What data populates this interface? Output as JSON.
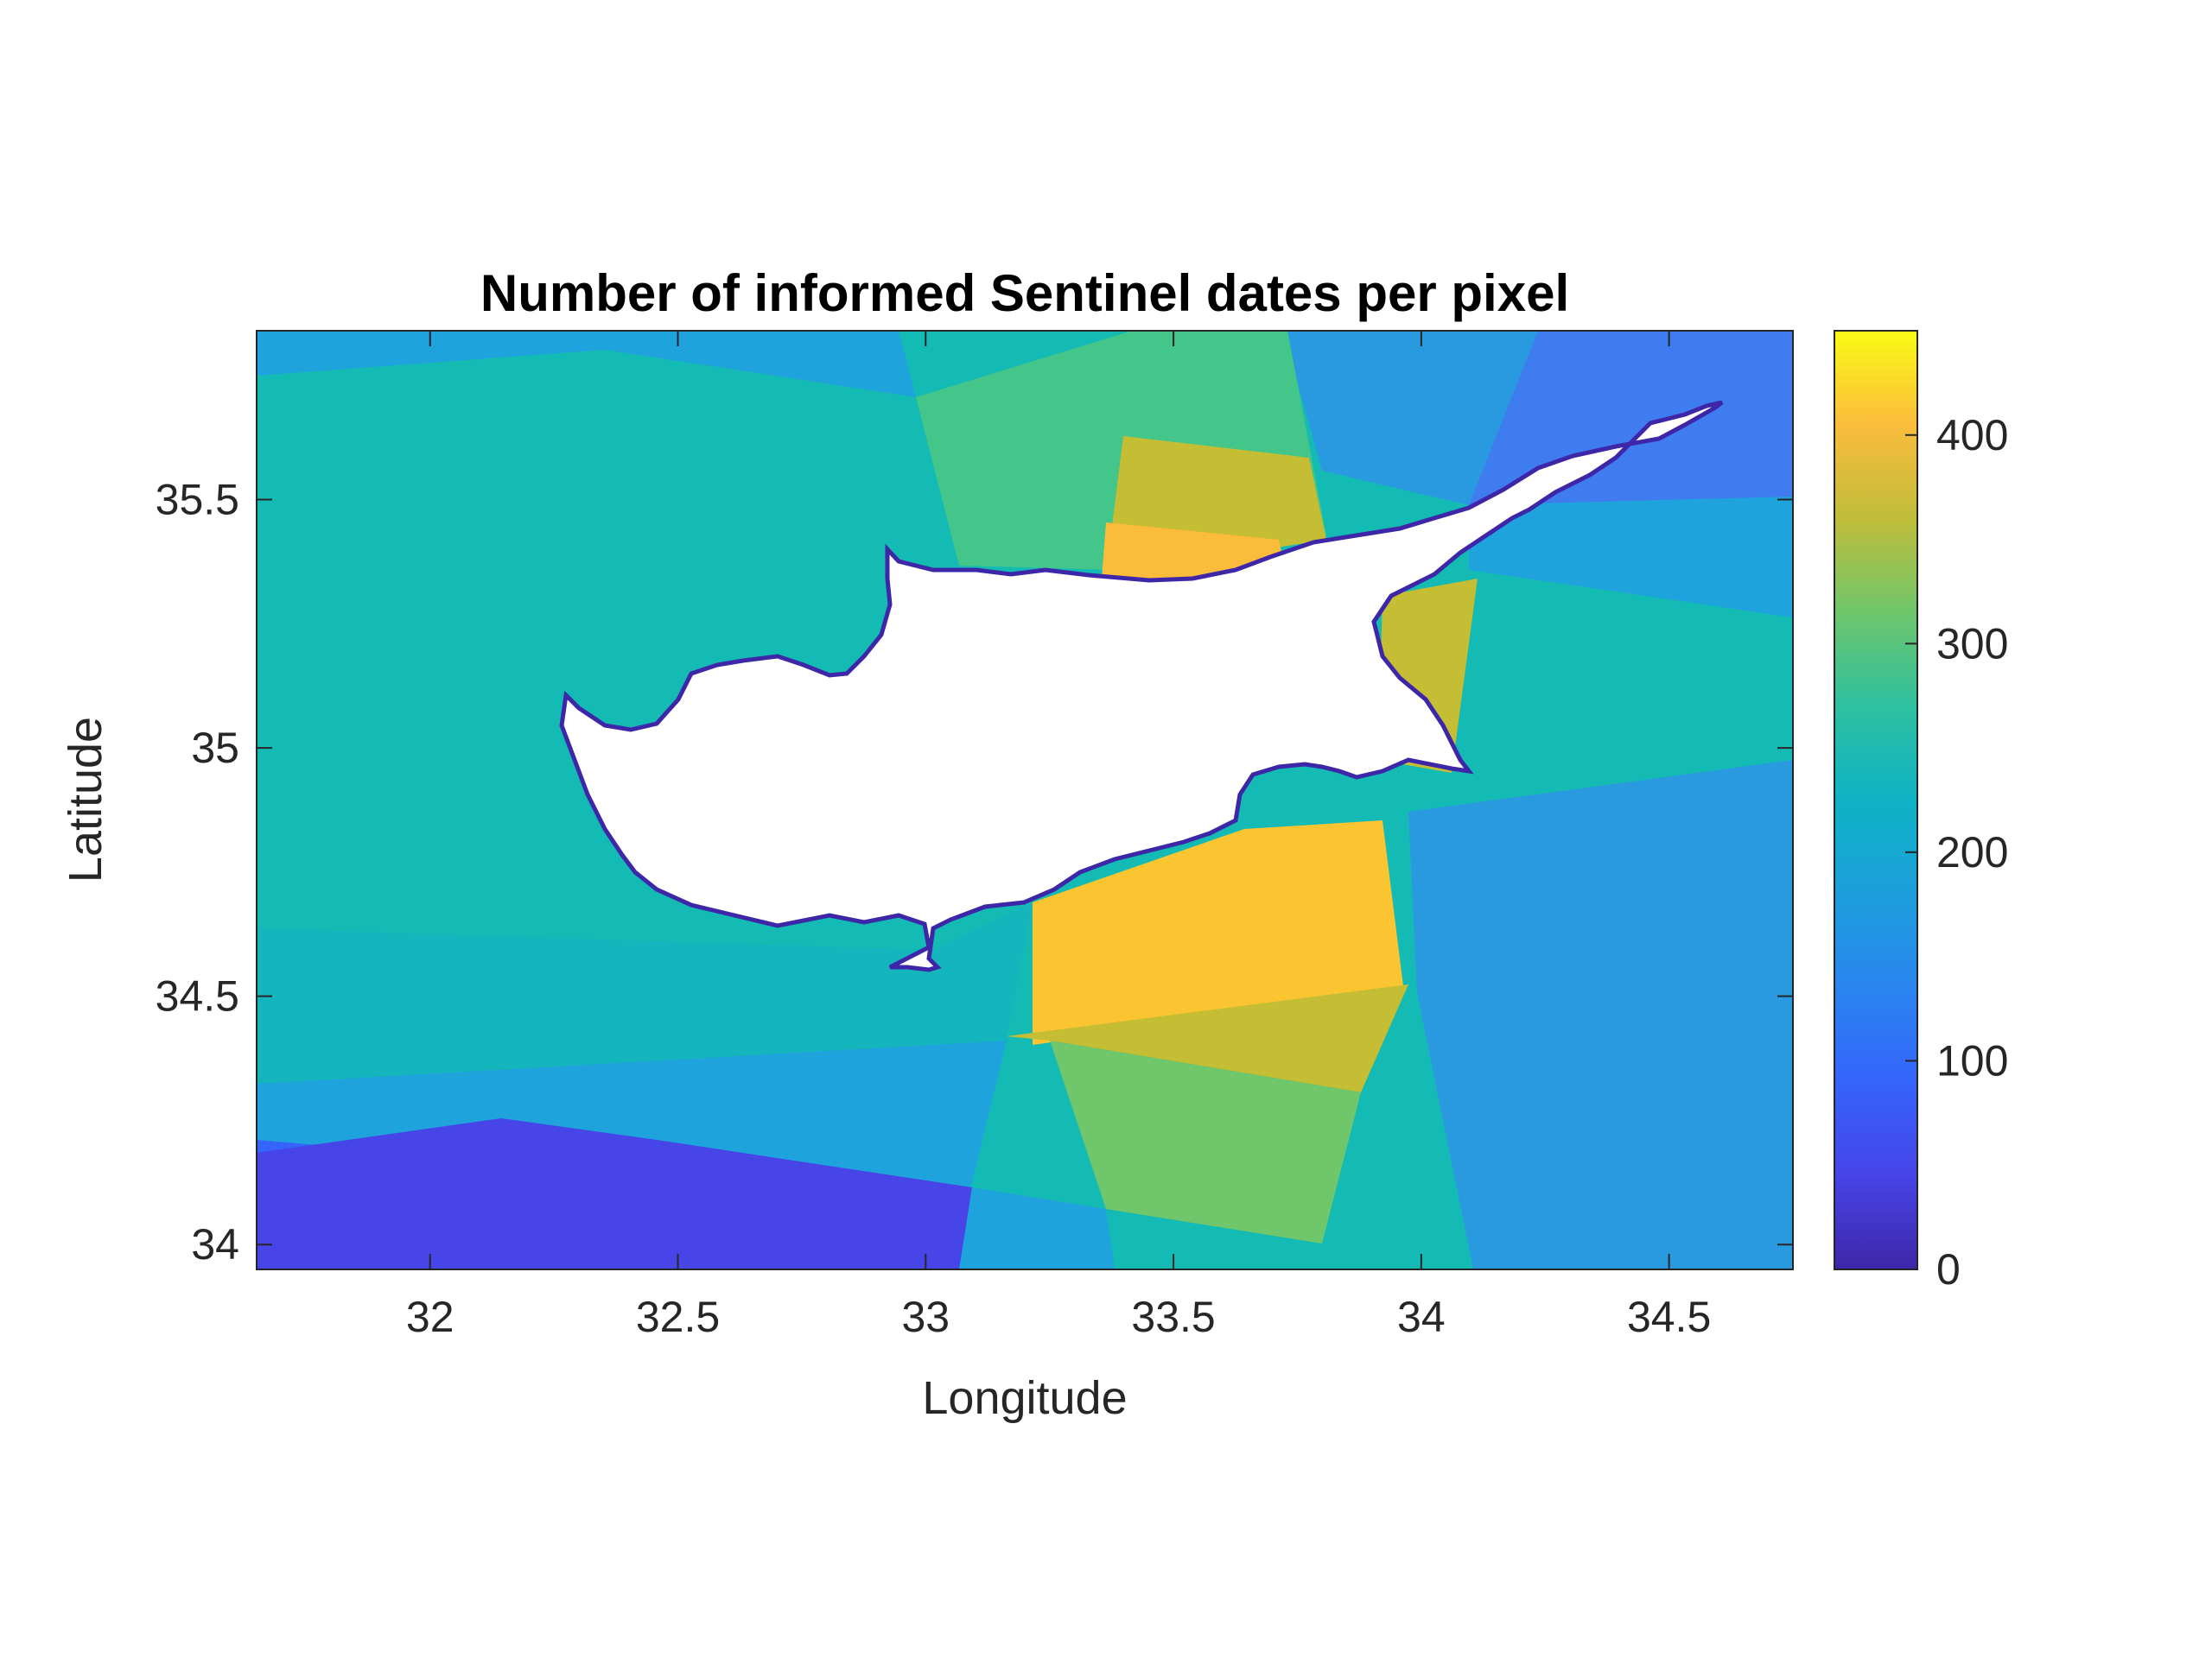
{
  "chart_data": {
    "type": "heatmap",
    "title": "Number of informed Sentinel dates per pixel",
    "xlabel": "Longitude",
    "ylabel": "Latitude",
    "xlim": [
      31.65,
      34.75
    ],
    "ylim": [
      33.95,
      35.84
    ],
    "xticks": [
      "32",
      "32.5",
      "33",
      "33.5",
      "34",
      "34.5"
    ],
    "yticks": [
      "34",
      "34.5",
      "35",
      "35.5"
    ],
    "colorbar": {
      "range": [
        0,
        450
      ],
      "ticks": [
        "0",
        "100",
        "200",
        "300",
        "400"
      ],
      "colormap": "parula"
    },
    "mask": "Cyprus landmass (no data, white)",
    "regions": [
      {
        "name": "north-west sea",
        "value": 215
      },
      {
        "name": "northern strip",
        "value": 270
      },
      {
        "name": "north-central strip",
        "value": 355
      },
      {
        "name": "north coast peak",
        "value": 390
      },
      {
        "name": "north-east offshore",
        "value": 120
      },
      {
        "name": "east sea",
        "value": 210
      },
      {
        "name": "south-east sea",
        "value": 180
      },
      {
        "name": "south coast peak",
        "value": 450
      },
      {
        "name": "south-central offshore",
        "value": 400
      },
      {
        "name": "south-west shelf",
        "value": 190
      },
      {
        "name": "southern band",
        "value": 140
      },
      {
        "name": "far south",
        "value": 75
      }
    ]
  }
}
